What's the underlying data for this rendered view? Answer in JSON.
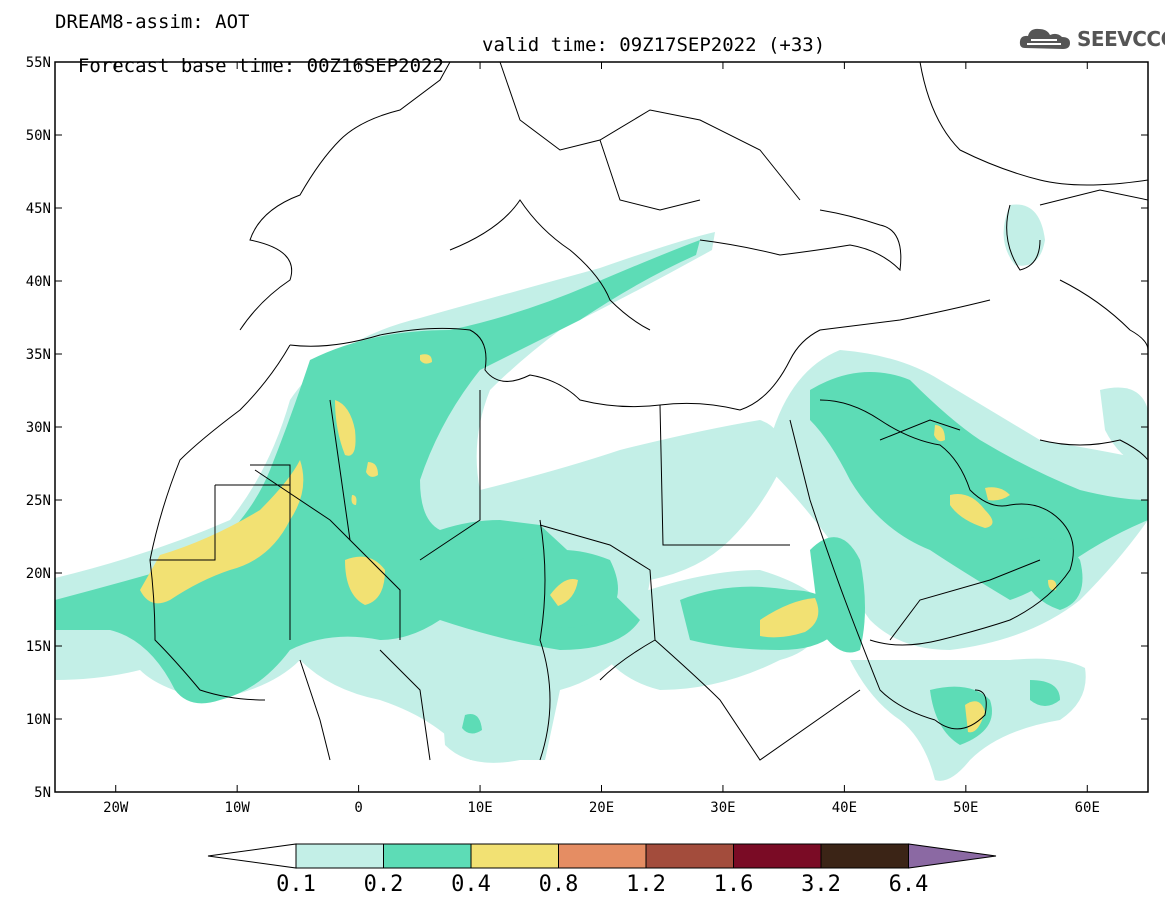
{
  "header": {
    "model_line": "DREAM8-assim: AOT",
    "base_time": "Forecast base time: 00Z16SEP2022",
    "valid_time": "valid time: 09Z17SEP2022 (+33)"
  },
  "logo": {
    "text": "SEEVCCC",
    "icon": "cloud-icon"
  },
  "map": {
    "lat_labels": [
      "55N",
      "50N",
      "45N",
      "40N",
      "35N",
      "30N",
      "25N",
      "20N",
      "15N",
      "10N",
      "5N"
    ],
    "lon_labels": [
      "20W",
      "10W",
      "0",
      "10E",
      "20E",
      "30E",
      "40E",
      "50E",
      "60E"
    ]
  },
  "colorbar": {
    "colors": [
      "#c3efe7",
      "#5ddcb6",
      "#f2e173",
      "#e58d63",
      "#a34c3c",
      "#7a0b25",
      "#3b2416",
      "#8b69a3"
    ],
    "labels": [
      "0.1",
      "0.2",
      "0.4",
      "0.8",
      "1.2",
      "1.6",
      "3.2",
      "6.4"
    ]
  }
}
